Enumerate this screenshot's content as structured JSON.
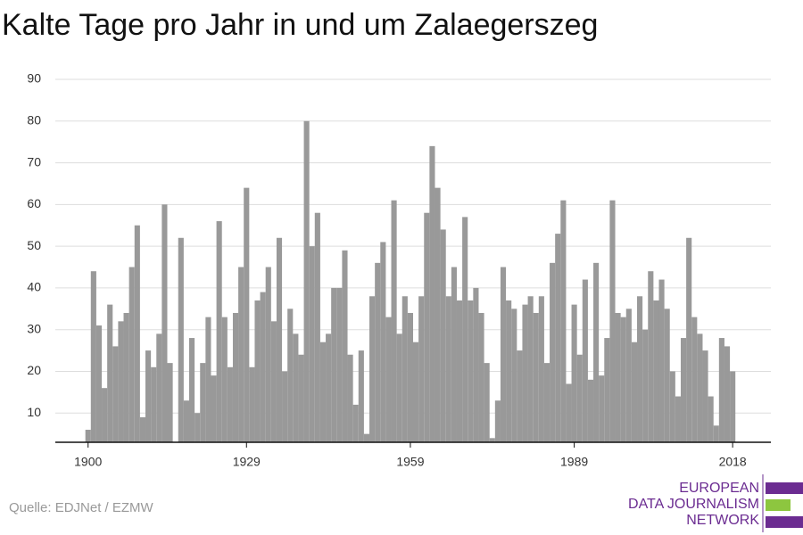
{
  "chart_data": {
    "type": "bar",
    "title": "Kalte Tage pro Jahr in und um Zalaegerszeg",
    "source": "Quelle: EDJNet / EZMW",
    "logo": [
      "EUROPEAN",
      "DATA JOURNALISM",
      "NETWORK"
    ],
    "color": "#999999",
    "grid": true,
    "x": [
      1900,
      1901,
      1902,
      1903,
      1904,
      1905,
      1906,
      1907,
      1908,
      1909,
      1910,
      1911,
      1912,
      1913,
      1914,
      1915,
      1916,
      1917,
      1918,
      1919,
      1920,
      1921,
      1922,
      1923,
      1924,
      1925,
      1926,
      1927,
      1928,
      1929,
      1930,
      1931,
      1932,
      1933,
      1934,
      1935,
      1936,
      1937,
      1938,
      1939,
      1940,
      1941,
      1942,
      1943,
      1944,
      1945,
      1946,
      1947,
      1948,
      1949,
      1950,
      1951,
      1952,
      1953,
      1954,
      1955,
      1956,
      1957,
      1958,
      1959,
      1960,
      1961,
      1962,
      1963,
      1964,
      1965,
      1966,
      1967,
      1968,
      1969,
      1970,
      1971,
      1972,
      1973,
      1974,
      1975,
      1976,
      1977,
      1978,
      1979,
      1980,
      1981,
      1982,
      1983,
      1984,
      1985,
      1986,
      1987,
      1988,
      1989,
      1990,
      1991,
      1992,
      1993,
      1994,
      1995,
      1996,
      1997,
      1998,
      1999,
      2000,
      2001,
      2002,
      2003,
      2004,
      2005,
      2006,
      2007,
      2008,
      2009,
      2010,
      2011,
      2012,
      2013,
      2014,
      2015,
      2016,
      2017,
      2018
    ],
    "values": [
      6,
      44,
      31,
      16,
      36,
      26,
      32,
      34,
      45,
      55,
      9,
      25,
      21,
      29,
      60,
      22,
      3,
      52,
      13,
      28,
      10,
      22,
      33,
      19,
      56,
      33,
      21,
      34,
      45,
      64,
      21,
      37,
      39,
      45,
      32,
      52,
      20,
      35,
      29,
      24,
      80,
      50,
      58,
      27,
      29,
      40,
      40,
      49,
      24,
      12,
      25,
      5,
      38,
      46,
      51,
      33,
      61,
      29,
      38,
      34,
      27,
      38,
      58,
      74,
      64,
      54,
      38,
      45,
      37,
      57,
      37,
      40,
      34,
      22,
      4,
      13,
      45,
      37,
      35,
      25,
      36,
      38,
      34,
      38,
      22,
      46,
      53,
      61,
      17,
      36,
      24,
      42,
      18,
      46,
      19,
      28,
      61,
      34,
      33,
      35,
      27,
      38,
      30,
      44,
      37,
      42,
      35,
      20,
      14,
      28,
      52,
      33,
      29,
      25,
      14,
      7,
      28,
      26,
      20
    ],
    "xlim": [
      1894,
      2025
    ],
    "xticks": [
      1900,
      1929,
      1959,
      1989,
      2018
    ],
    "ylim": [
      3,
      90
    ],
    "yticks": [
      10,
      20,
      30,
      40,
      50,
      60,
      70,
      80,
      90
    ]
  }
}
